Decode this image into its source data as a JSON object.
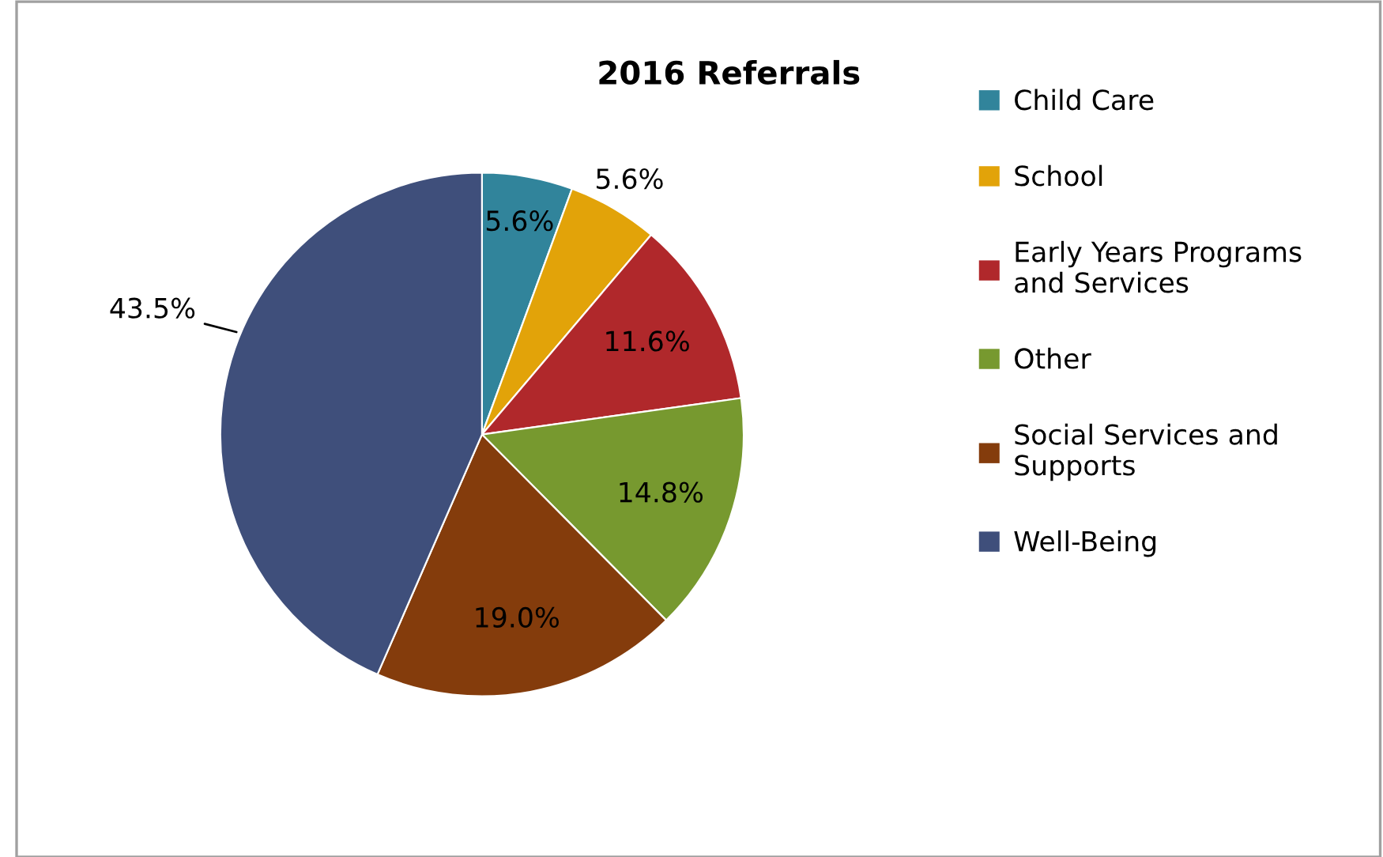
{
  "chart_data": {
    "type": "pie",
    "title": "2016 Referrals",
    "categories": [
      "Child Care",
      "School",
      "Early Years Programs and Services",
      "Other",
      "Social Services and Supports",
      "Well-Being"
    ],
    "values": [
      5.6,
      5.6,
      11.6,
      14.8,
      19.0,
      43.5
    ],
    "value_labels": [
      "5.6%",
      "5.6%",
      "11.6%",
      "14.8%",
      "19.0%",
      "43.5%"
    ],
    "colors": [
      "#31849b",
      "#e2a309",
      "#b0282b",
      "#77992f",
      "#843c0c",
      "#3f4f7b"
    ],
    "legend": "right"
  }
}
